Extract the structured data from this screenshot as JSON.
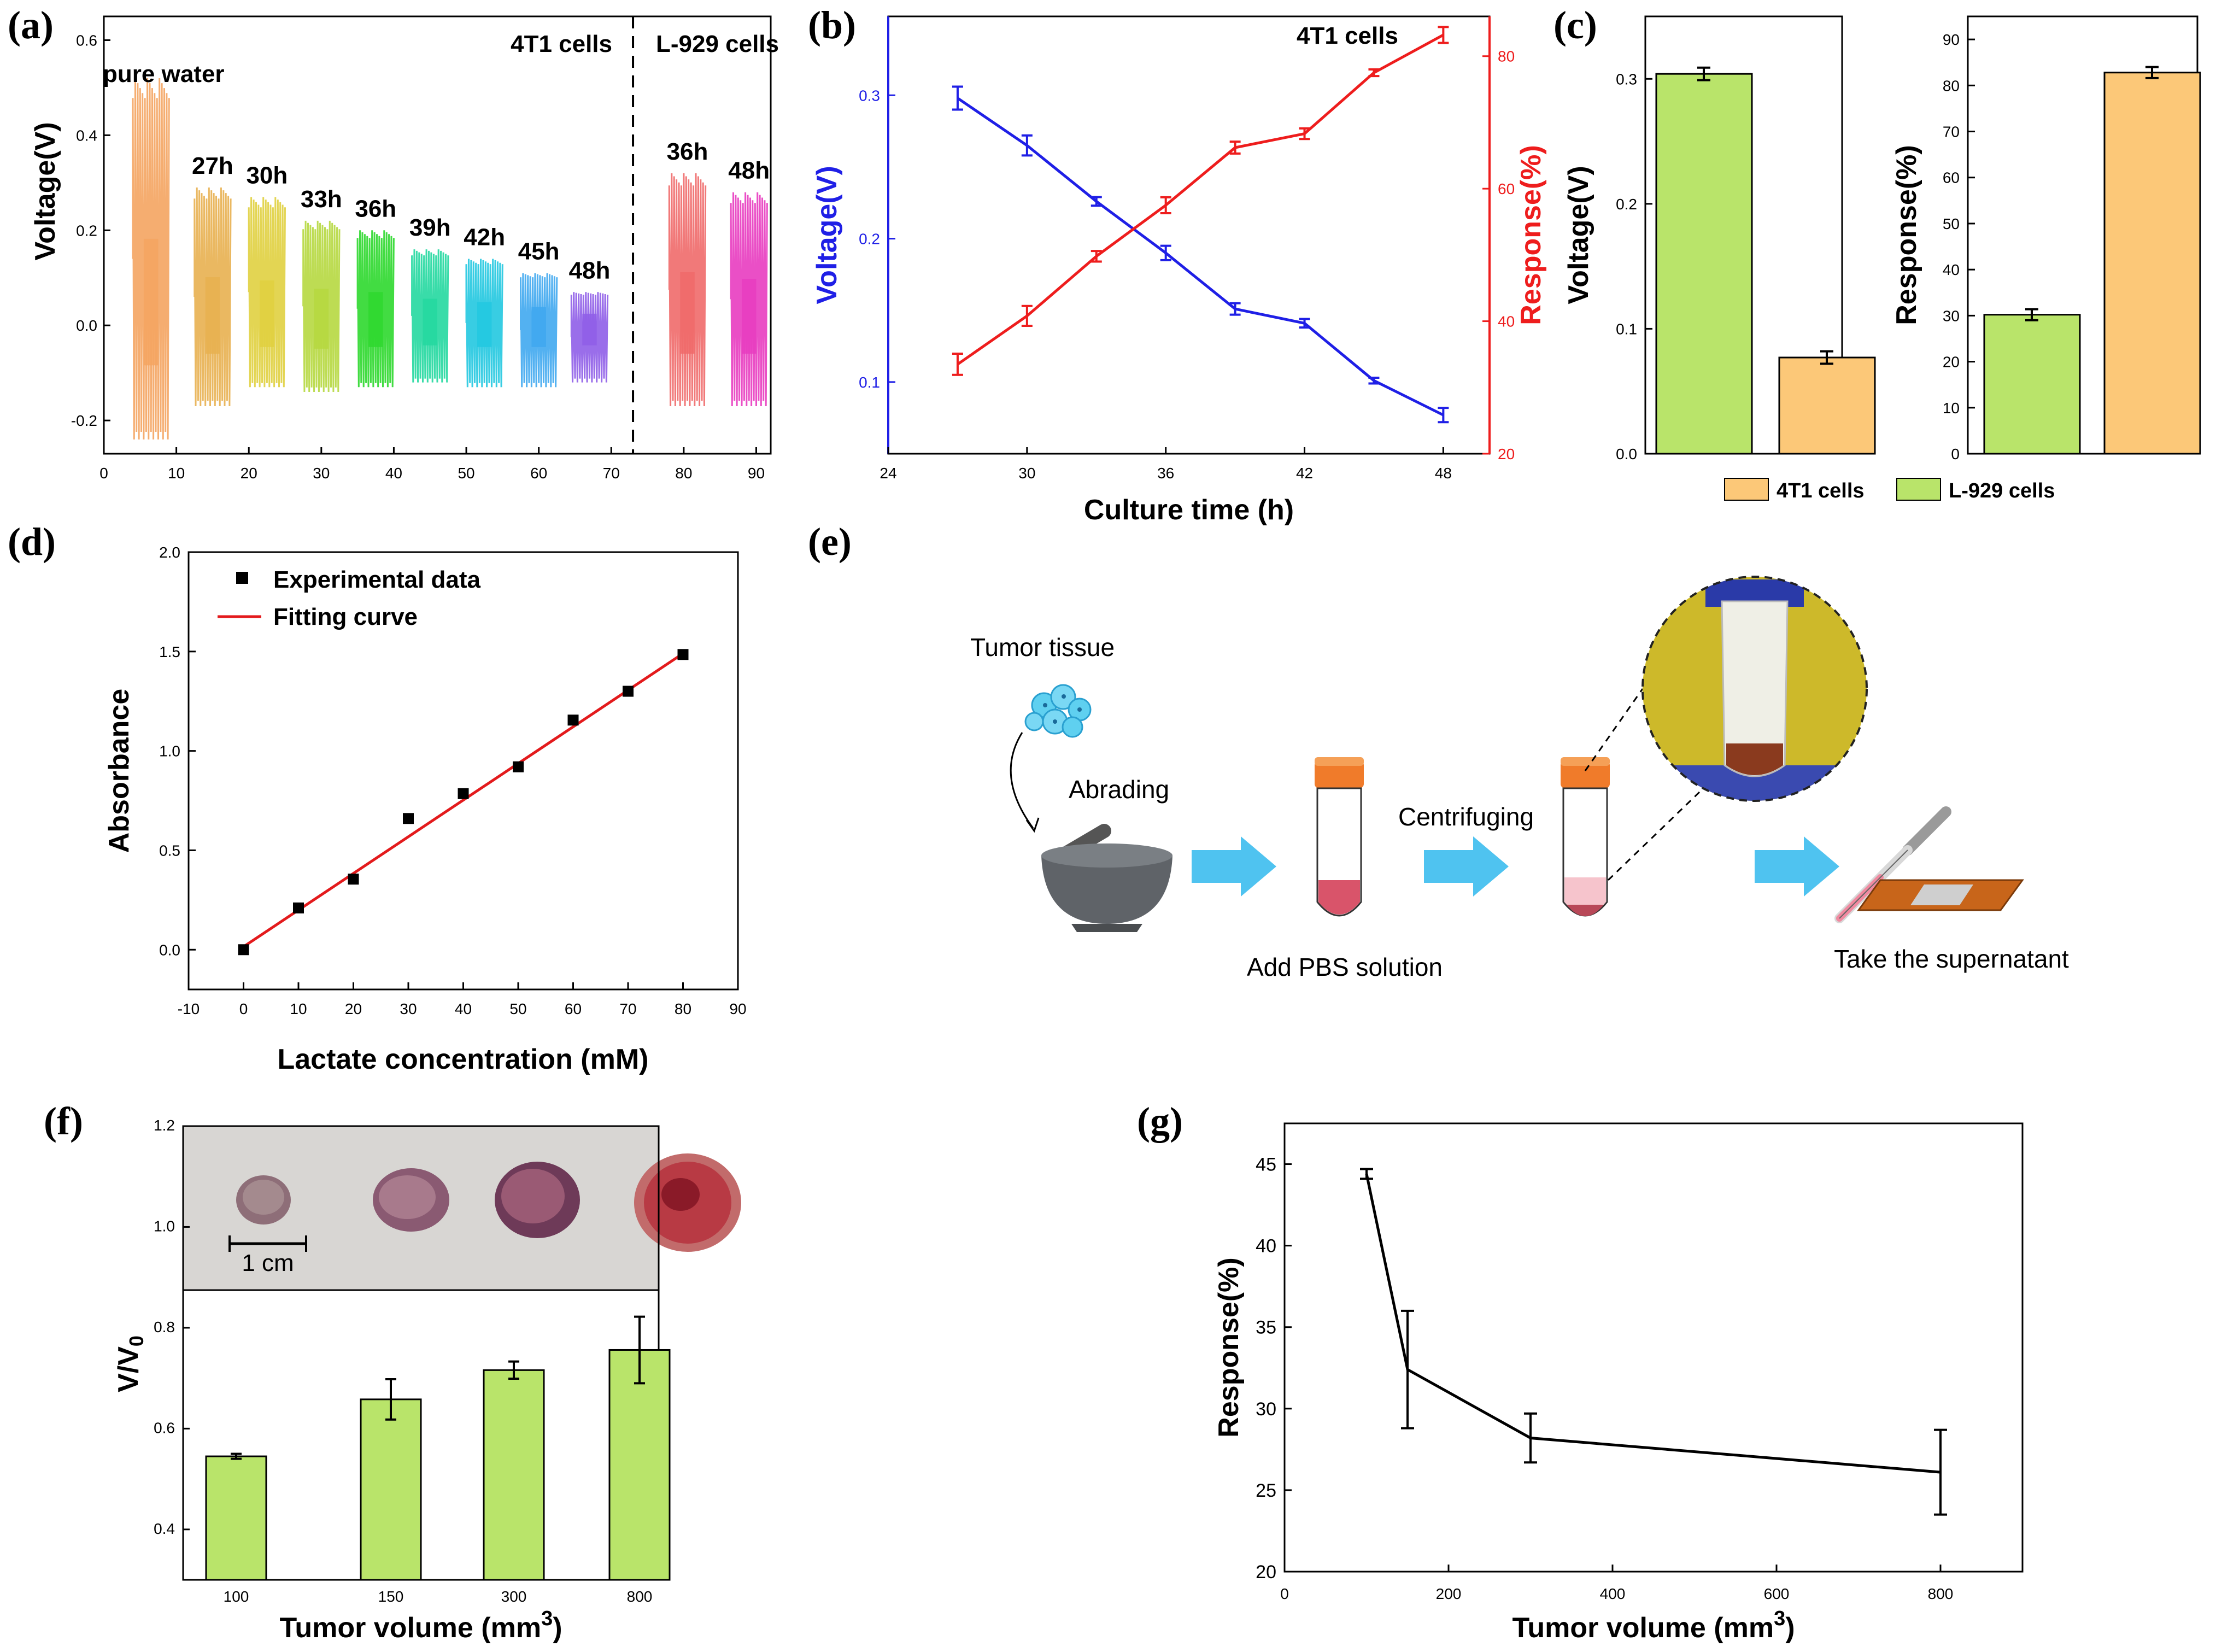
{
  "figure_labels": [
    "(a)",
    "(b)",
    "(c)",
    "(d)",
    "(e)",
    "(f)",
    "(g)"
  ],
  "colors": {
    "green_bar": "#b9e46a",
    "orange_bar": "#fcc878",
    "blue_line": "#1f1fe6",
    "red_line": "#ee1d1d",
    "fit_line": "#e31a1c",
    "arrow": "#4fc3f0",
    "photo_bg": "#d8d6d3",
    "inset_bg": "#cdb92a"
  },
  "chart_data": [
    {
      "id": "a",
      "type": "line",
      "title": "",
      "xlabel": "",
      "ylabel": "Voltage(V)",
      "xlim": [
        0,
        92
      ],
      "ylim": [
        -0.27,
        0.65
      ],
      "xticks": [
        0,
        10,
        20,
        30,
        40,
        50,
        60,
        70,
        80,
        90
      ],
      "yticks": [
        -0.2,
        0.0,
        0.2,
        0.4,
        0.6
      ],
      "divider_x": 73,
      "region_labels": [
        "4T1 cells",
        "L-929 cells"
      ],
      "segments": [
        {
          "label": "pure water",
          "x_start": 4,
          "x_end": 9,
          "max": 0.52,
          "min": -0.24,
          "color": "#f4a460"
        },
        {
          "label": "27h",
          "x_start": 12.5,
          "x_end": 17.5,
          "max": 0.29,
          "min": -0.17,
          "color": "#e8b050"
        },
        {
          "label": "30h",
          "x_start": 20,
          "x_end": 25,
          "max": 0.27,
          "min": -0.13,
          "color": "#e0d040"
        },
        {
          "label": "33h",
          "x_start": 27.5,
          "x_end": 32.5,
          "max": 0.22,
          "min": -0.14,
          "color": "#b6d840"
        },
        {
          "label": "36h",
          "x_start": 35,
          "x_end": 40,
          "max": 0.2,
          "min": -0.13,
          "color": "#2ed82e"
        },
        {
          "label": "39h",
          "x_start": 42.5,
          "x_end": 47.5,
          "max": 0.16,
          "min": -0.12,
          "color": "#24d8a0"
        },
        {
          "label": "42h",
          "x_start": 50,
          "x_end": 55,
          "max": 0.14,
          "min": -0.13,
          "color": "#22c8e0"
        },
        {
          "label": "45h",
          "x_start": 57.5,
          "x_end": 62.5,
          "max": 0.11,
          "min": -0.13,
          "color": "#40a8f0"
        },
        {
          "label": "48h",
          "x_start": 64.5,
          "x_end": 69.5,
          "max": 0.07,
          "min": -0.12,
          "color": "#8f5ee8"
        },
        {
          "label": "36h",
          "x_start": 78,
          "x_end": 83,
          "max": 0.32,
          "min": -0.17,
          "color": "#f06a6a"
        },
        {
          "label": "48h",
          "x_start": 86.5,
          "x_end": 91.5,
          "max": 0.28,
          "min": -0.17,
          "color": "#e83cc0"
        }
      ]
    },
    {
      "id": "b",
      "type": "line",
      "title": "4T1 cells",
      "xlabel": "Culture time (h)",
      "ylabel": "Voltage(V)",
      "y2label": "Response(%)",
      "xlim": [
        24,
        50
      ],
      "ylim": [
        0.05,
        0.355
      ],
      "y2lim": [
        20,
        86
      ],
      "xticks": [
        24,
        30,
        36,
        42,
        48
      ],
      "yticks": [
        0.1,
        0.2,
        0.3
      ],
      "y2ticks": [
        20,
        40,
        60,
        80
      ],
      "x": [
        27,
        30,
        33,
        36,
        39,
        42,
        45,
        48
      ],
      "series": [
        {
          "name": "Voltage",
          "axis": "left",
          "values": [
            0.298,
            0.265,
            0.226,
            0.19,
            0.151,
            0.141,
            0.101,
            0.077
          ],
          "errors": [
            0.008,
            0.007,
            0.003,
            0.005,
            0.004,
            0.003,
            0.002,
            0.005
          ]
        },
        {
          "name": "Response",
          "axis": "right",
          "values": [
            33.5,
            40.8,
            49.8,
            57.5,
            66.2,
            68.3,
            77.5,
            83.2
          ],
          "errors": [
            1.6,
            1.5,
            0.8,
            1.2,
            0.9,
            0.8,
            0.5,
            1.2
          ]
        }
      ]
    },
    {
      "id": "c1",
      "type": "bar",
      "title": "",
      "xlabel": "",
      "ylabel": "Voltage(V)",
      "ylim": [
        0,
        0.35
      ],
      "yticks": [
        0.0,
        0.1,
        0.2,
        0.3
      ],
      "categories": [
        "L-929 cells",
        "4T1 cells"
      ],
      "values": [
        0.304,
        0.077
      ],
      "errors": [
        0.005,
        0.005
      ]
    },
    {
      "id": "c2",
      "type": "bar",
      "title": "",
      "xlabel": "",
      "ylabel": "Response(%)",
      "ylim": [
        0,
        95
      ],
      "yticks": [
        0,
        10,
        20,
        30,
        40,
        50,
        60,
        70,
        80,
        90
      ],
      "categories": [
        "L-929 cells",
        "4T1 cells"
      ],
      "values": [
        30.2,
        82.8
      ],
      "errors": [
        1.2,
        1.2
      ],
      "legend": [
        "4T1 cells",
        "L-929 cells"
      ]
    },
    {
      "id": "d",
      "type": "scatter",
      "title": "",
      "xlabel": "Lactate concentration (mM)",
      "ylabel": "Absorbance",
      "xlim": [
        -10,
        90
      ],
      "ylim": [
        -0.2,
        2.0
      ],
      "xticks": [
        -10,
        0,
        10,
        20,
        30,
        40,
        50,
        60,
        70,
        80,
        90
      ],
      "yticks": [
        0.0,
        0.5,
        1.0,
        1.5,
        2.0
      ],
      "x": [
        0,
        10,
        20,
        30,
        40,
        50,
        60,
        70,
        80
      ],
      "y": [
        0.0,
        0.21,
        0.355,
        0.66,
        0.785,
        0.92,
        1.155,
        1.3,
        1.485
      ],
      "fit": {
        "x": [
          0,
          80
        ],
        "y": [
          0.015,
          1.49
        ]
      },
      "legend": [
        "Experimental data",
        "Fitting curve"
      ]
    },
    {
      "id": "f",
      "type": "bar",
      "title": "",
      "xlabel": "Tumor volume (mm3)",
      "ylabel": "V/V0",
      "ylim": [
        0.3,
        1.2
      ],
      "yticks_visible": [
        0.4,
        0.6,
        0.8,
        1.0,
        1.2
      ],
      "categories": [
        "100",
        "150",
        "300",
        "800"
      ],
      "values": [
        0.545,
        0.658,
        0.716,
        0.756
      ],
      "errors": [
        0.005,
        0.04,
        0.017,
        0.066
      ],
      "photo_caption": "1 cm"
    },
    {
      "id": "g",
      "type": "line",
      "title": "",
      "xlabel": "Tumor volume (mm3)",
      "ylabel": "Response(%)",
      "xlim": [
        0,
        900
      ],
      "ylim": [
        20,
        47.5
      ],
      "xticks": [
        0,
        200,
        400,
        600,
        800
      ],
      "yticks": [
        20,
        25,
        30,
        35,
        40,
        45
      ],
      "x": [
        100,
        150,
        300,
        800
      ],
      "values": [
        44.4,
        32.4,
        28.2,
        26.1
      ],
      "errors": [
        0.3,
        3.6,
        1.5,
        2.6
      ]
    }
  ],
  "panel_e": {
    "tumor_tissue": "Tumor tissue",
    "abrading": "Abrading",
    "add_pbs": "Add PBS solution",
    "centrifuging": "Centrifuging",
    "take_supernatant": "Take the supernatant"
  },
  "panel_f_labels": {
    "xlabel_main": "Tumor volume (mm",
    "xlabel_sup": "3",
    "xlabel_end": ")",
    "ylabel_main": "V/V",
    "ylabel_sub": "0"
  },
  "panel_g_labels": {
    "xlabel_main": "Tumor volume (mm",
    "xlabel_sup": "3",
    "xlabel_end": ")"
  }
}
